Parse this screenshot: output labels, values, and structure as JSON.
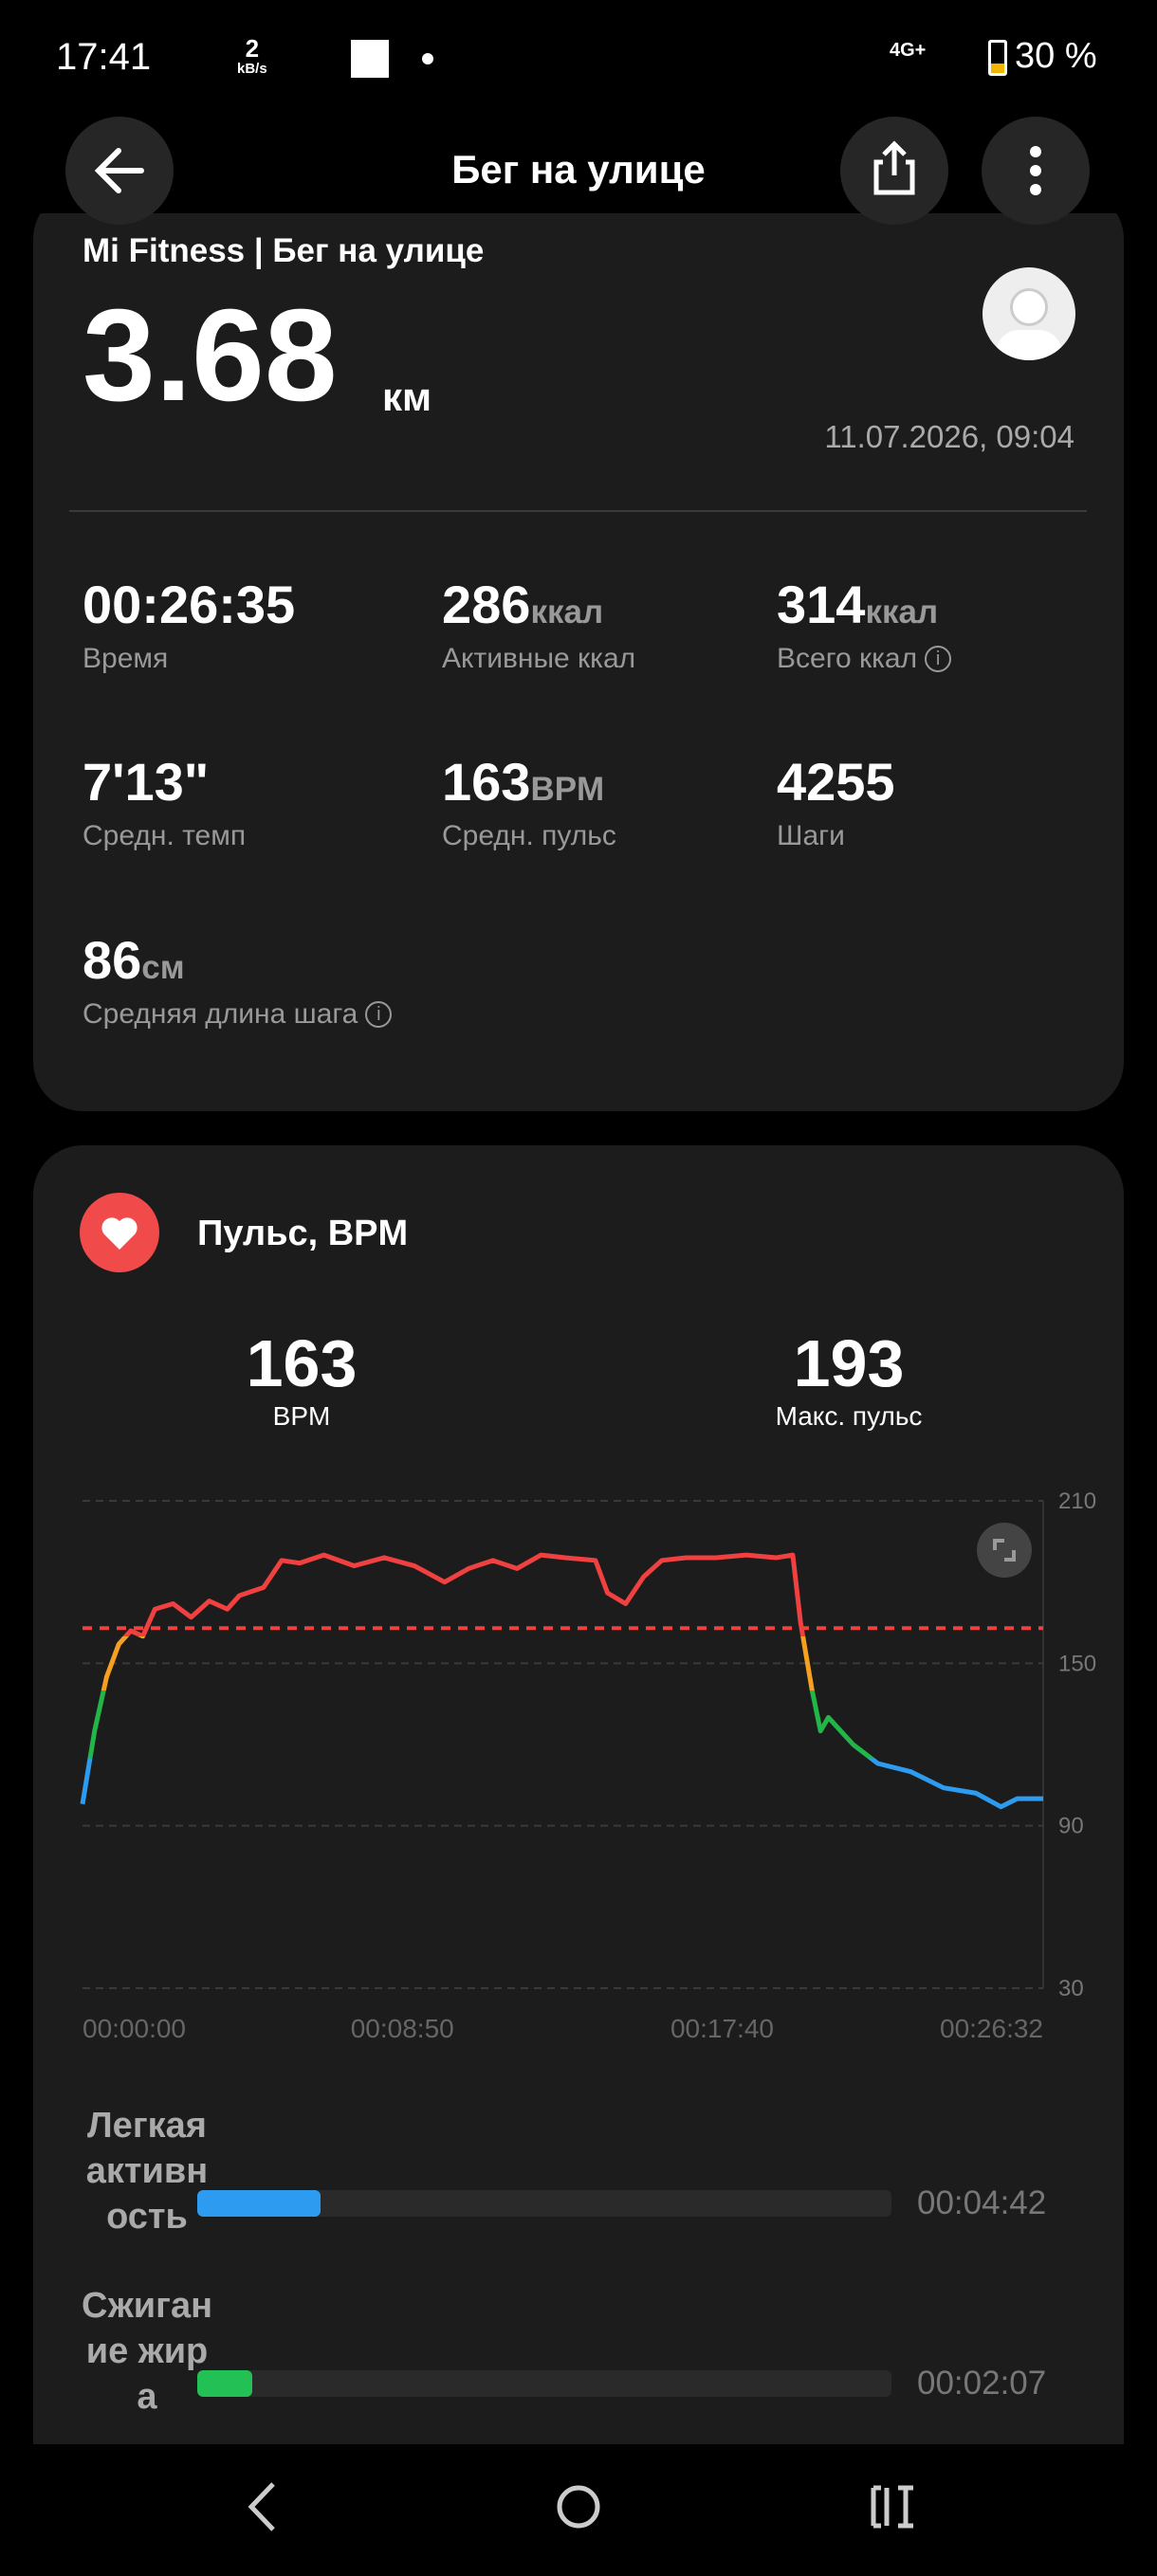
{
  "status_bar": {
    "time": "17:41",
    "speed": "2",
    "speed_unit": "kB/s",
    "network": "4G+",
    "battery": "30 %"
  },
  "header": {
    "title": "Бег на улице"
  },
  "summary": {
    "source": "Mi Fitness | Бег на улице",
    "distance": "3.68",
    "distance_unit": "км",
    "date": "11.07.2026, 09:04",
    "stats": [
      {
        "value": "00:26:35",
        "label": "Время"
      },
      {
        "value": "286",
        "unit": "ккал",
        "label": "Активные ккал"
      },
      {
        "value": "314",
        "unit": "ккал",
        "label": "Всего ккал",
        "info": true
      },
      {
        "value": "7'13\"",
        "label": "Средн. темп"
      },
      {
        "value": "163",
        "unit": "BPM",
        "label": "Средн. пульс"
      },
      {
        "value": "4255",
        "label": "Шаги"
      },
      {
        "value": "86",
        "unit": "см",
        "label": "Средняя длина шага",
        "info": true
      }
    ]
  },
  "heart_card": {
    "title": "Пульс, BPM",
    "avg": "163",
    "avg_label": "BPM",
    "max": "193",
    "max_label": "Макс. пульс"
  },
  "chart_data": {
    "type": "line",
    "x": [
      0,
      20,
      40,
      60,
      80,
      100,
      120,
      150,
      180,
      210,
      240,
      260,
      300,
      330,
      360,
      400,
      450,
      500,
      550,
      600,
      640,
      680,
      720,
      760,
      800,
      850,
      870,
      900,
      930,
      960,
      1000,
      1050,
      1100,
      1150,
      1177,
      1190,
      1209,
      1223,
      1236,
      1277,
      1318,
      1372,
      1427,
      1481,
      1522,
      1549,
      1592
    ],
    "values": [
      98,
      125,
      145,
      157,
      162,
      160,
      170,
      172,
      167,
      173,
      170,
      175,
      178,
      188,
      187,
      190,
      186,
      189,
      186,
      180,
      185,
      188,
      185,
      190,
      189,
      188,
      176,
      172,
      182,
      188,
      189,
      189,
      190,
      189,
      190,
      165,
      140,
      125,
      130,
      120,
      113,
      110,
      104,
      102,
      97,
      100,
      100
    ],
    "xlim": [
      0,
      1592
    ],
    "xticks": [
      {
        "value": 0,
        "label": "00:00:00"
      },
      {
        "value": 530,
        "label": "00:08:50"
      },
      {
        "value": 1060,
        "label": "00:17:40"
      },
      {
        "value": 1592,
        "label": "00:26:32"
      }
    ],
    "ylim": [
      30,
      210
    ],
    "yticks": [
      30,
      90,
      150,
      210
    ],
    "grid": true,
    "reference_line": 163,
    "reference_color": "#f04040"
  },
  "zones": [
    {
      "name": "Легкая активность",
      "seconds": 282,
      "label": "00:04:42",
      "color": "#2d9cf0"
    },
    {
      "name": "Сжигание жира",
      "seconds": 127,
      "label": "00:02:07",
      "color": "#22c055"
    }
  ]
}
